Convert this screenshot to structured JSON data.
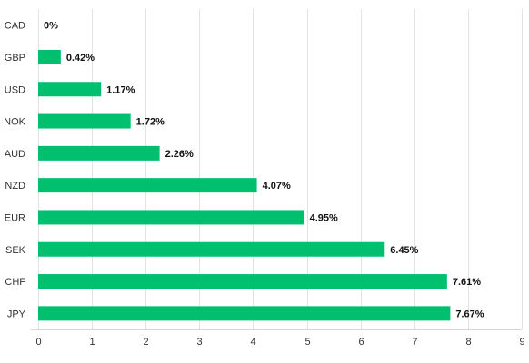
{
  "chart_data": {
    "type": "bar",
    "orientation": "horizontal",
    "categories": [
      "CAD",
      "GBP",
      "USD",
      "NOK",
      "AUD",
      "NZD",
      "EUR",
      "SEK",
      "CHF",
      "JPY"
    ],
    "values": [
      0,
      0.42,
      1.17,
      1.72,
      2.26,
      4.07,
      4.95,
      6.45,
      7.61,
      7.67
    ],
    "value_labels": [
      "0%",
      "0.42%",
      "1.17%",
      "1.72%",
      "2.26%",
      "4.07%",
      "4.95%",
      "6.45%",
      "7.61%",
      "7.67%"
    ],
    "x_ticks": [
      "0",
      "1",
      "2",
      "3",
      "4",
      "5",
      "6",
      "7",
      "8",
      "9"
    ],
    "xlim": [
      0,
      9
    ],
    "title": "",
    "xlabel": "",
    "ylabel": "",
    "grid": true,
    "legend": "none",
    "bar_color": "#00bf6f"
  }
}
